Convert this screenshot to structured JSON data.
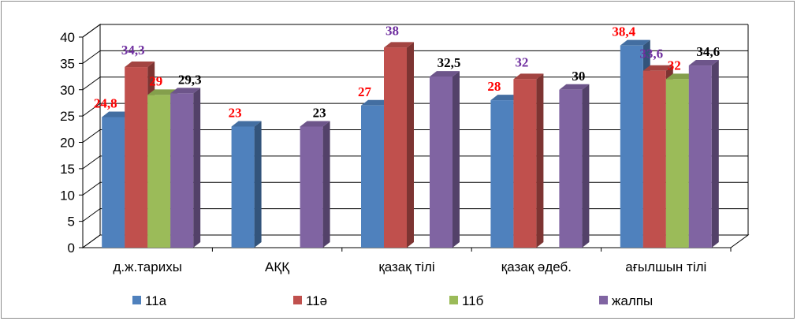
{
  "chart_data": {
    "type": "bar",
    "categories": [
      "д.ж.тарихы",
      "АҚҚ",
      "қазақ тілі",
      "қазақ әдеб.",
      "ағылшын тілі"
    ],
    "series": [
      {
        "name": "11а",
        "color": "#4f81bd",
        "values": [
          24.8,
          23,
          27,
          28,
          38.4
        ],
        "labels": [
          "24,8",
          "23",
          "27",
          "28",
          "38,4"
        ],
        "label_colors": [
          "#ff0000",
          "#ff0000",
          "#ff0000",
          "#ff0000",
          "#ff0000"
        ]
      },
      {
        "name": "11ә",
        "color": "#c0504d",
        "values": [
          34.3,
          null,
          38,
          32,
          33.6
        ],
        "labels": [
          "34,3",
          "",
          "38",
          "32",
          "33,6"
        ],
        "label_colors": [
          "#7030a0",
          null,
          "#7030a0",
          "#7030a0",
          "#7030a0"
        ]
      },
      {
        "name": "11б",
        "color": "#9bbb59",
        "values": [
          29,
          null,
          null,
          null,
          32
        ],
        "labels": [
          "29",
          "",
          "",
          "",
          "32"
        ],
        "label_colors": [
          "#ff0000",
          null,
          null,
          null,
          "#ff0000"
        ]
      },
      {
        "name": "жалпы",
        "color": "#8064a2",
        "values": [
          29.3,
          23,
          32.5,
          30,
          34.6
        ],
        "labels": [
          "29,3",
          "23",
          "32,5",
          "30",
          "34,6"
        ],
        "label_colors": [
          "#000000",
          "#000000",
          "#000000",
          "#000000",
          "#000000"
        ]
      }
    ],
    "yticks": [
      "0",
      "5",
      "10",
      "15",
      "20",
      "25",
      "30",
      "35",
      "40"
    ],
    "ylim": [
      0,
      40
    ],
    "grid": true,
    "legend_position": "bottom",
    "title": "",
    "xlabel": "",
    "ylabel": ""
  }
}
